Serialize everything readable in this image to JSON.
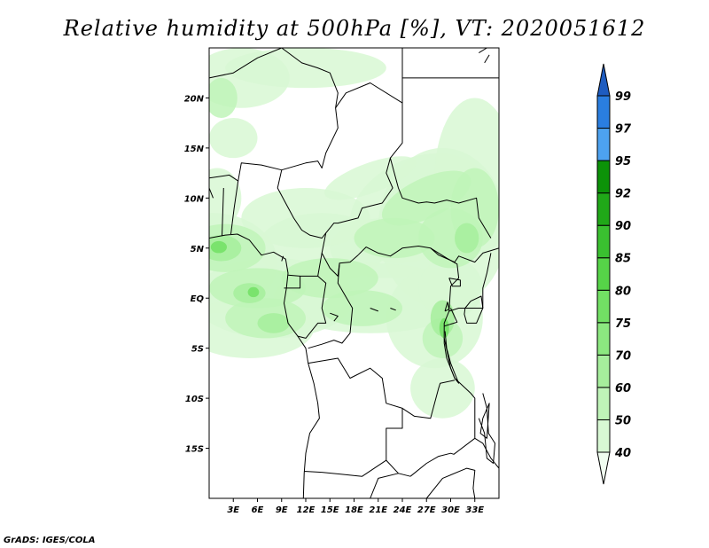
{
  "title": "Relative humidity at 500hPa [%], VT: 2020051612",
  "credit": "GrADS: IGES/COLA",
  "map": {
    "lon_range": [
      0,
      36
    ],
    "lat_range": [
      -20,
      25
    ],
    "lat_ticks": [
      {
        "value": 20,
        "label": "20N"
      },
      {
        "value": 15,
        "label": "15N"
      },
      {
        "value": 10,
        "label": "10N"
      },
      {
        "value": 5,
        "label": "5N"
      },
      {
        "value": 0,
        "label": "EQ"
      },
      {
        "value": -5,
        "label": "5S"
      },
      {
        "value": -10,
        "label": "10S"
      },
      {
        "value": -15,
        "label": "15S"
      }
    ],
    "lon_ticks": [
      {
        "value": 3,
        "label": "3E"
      },
      {
        "value": 6,
        "label": "6E"
      },
      {
        "value": 9,
        "label": "9E"
      },
      {
        "value": 12,
        "label": "12E"
      },
      {
        "value": 15,
        "label": "15E"
      },
      {
        "value": 18,
        "label": "18E"
      },
      {
        "value": 21,
        "label": "21E"
      },
      {
        "value": 24,
        "label": "24E"
      },
      {
        "value": 27,
        "label": "27E"
      },
      {
        "value": 30,
        "label": "30E"
      },
      {
        "value": 33,
        "label": "33E"
      }
    ]
  },
  "colorbar": {
    "levels": [
      "40",
      "50",
      "60",
      "70",
      "75",
      "80",
      "85",
      "90",
      "92",
      "95",
      "97",
      "99"
    ],
    "colors": [
      "#f0fdf0",
      "#d8f8d4",
      "#bff4b8",
      "#a6ee9c",
      "#8ce880",
      "#72e064",
      "#56d448",
      "#3ac030",
      "#20a818",
      "#0c9208",
      "#4da2f0",
      "#2a7ee0",
      "#1e5cc0"
    ]
  },
  "colors": {
    "coastline": "#000000",
    "land": "#ffffff"
  }
}
